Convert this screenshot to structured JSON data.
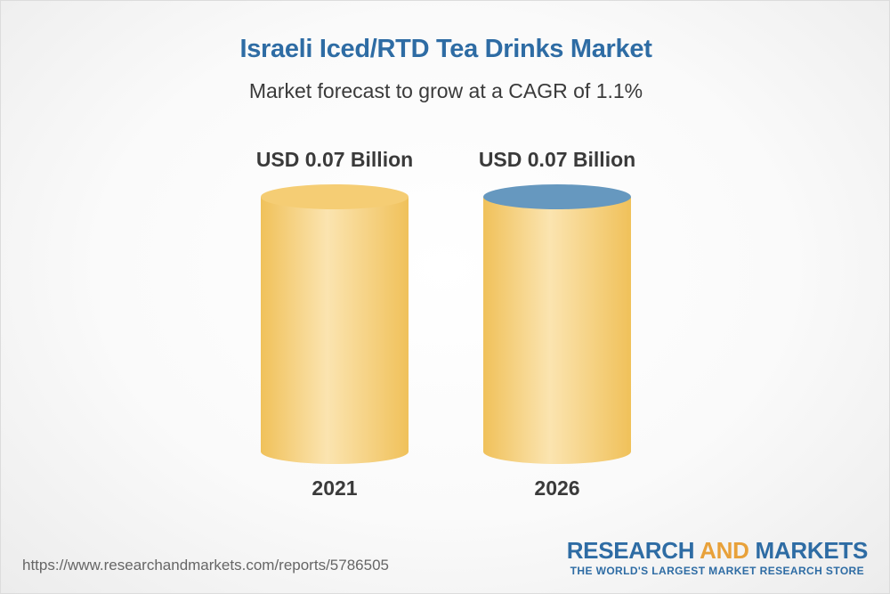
{
  "chart_data": {
    "type": "bar",
    "title": "Israeli Iced/RTD Tea Drinks Market",
    "subtitle": "Market forecast to grow at a CAGR of 1.1%",
    "categories": [
      "2021",
      "2026"
    ],
    "values": [
      0.07,
      0.07
    ],
    "value_labels": [
      "USD 0.07 Billion",
      "USD 0.07 Billion"
    ],
    "unit": "USD Billion",
    "ylim": [
      0,
      0.07
    ],
    "colors": {
      "body_light": "#fbe4b0",
      "body_dark": "#f0c15a",
      "top_2021": "#f5cd74",
      "top_2026": "#6698bf",
      "label": "#3a3a3a"
    }
  },
  "footer": {
    "url": "https://www.researchandmarkets.com/reports/5786505",
    "logo_research": "RESEARCH",
    "logo_and": "AND",
    "logo_markets": "MARKETS",
    "logo_tagline": "THE WORLD'S LARGEST MARKET RESEARCH STORE"
  }
}
